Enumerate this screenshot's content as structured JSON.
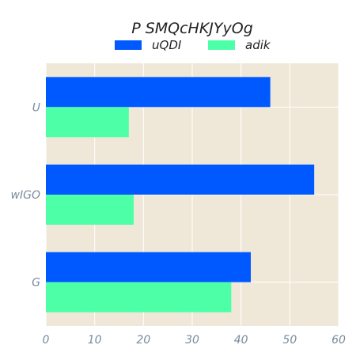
{
  "chart_data": {
    "type": "bar",
    "orientation": "horizontal",
    "title": "P SMQcHKJYyOg",
    "xlabel": "",
    "ylabel": "",
    "categories": [
      "U",
      "wIGO",
      "G"
    ],
    "series": [
      {
        "name": "uQDI",
        "color": "#0059ff",
        "values": [
          46,
          55,
          42
        ]
      },
      {
        "name": "adik",
        "color": "#4dffa6",
        "values": [
          17,
          18,
          38
        ]
      }
    ],
    "xlim": [
      0,
      60
    ],
    "xticks": [
      "0",
      "10",
      "20",
      "30",
      "40",
      "50",
      "60"
    ],
    "grid": true,
    "legend": "top-center",
    "background_color": "#efe8d8"
  }
}
